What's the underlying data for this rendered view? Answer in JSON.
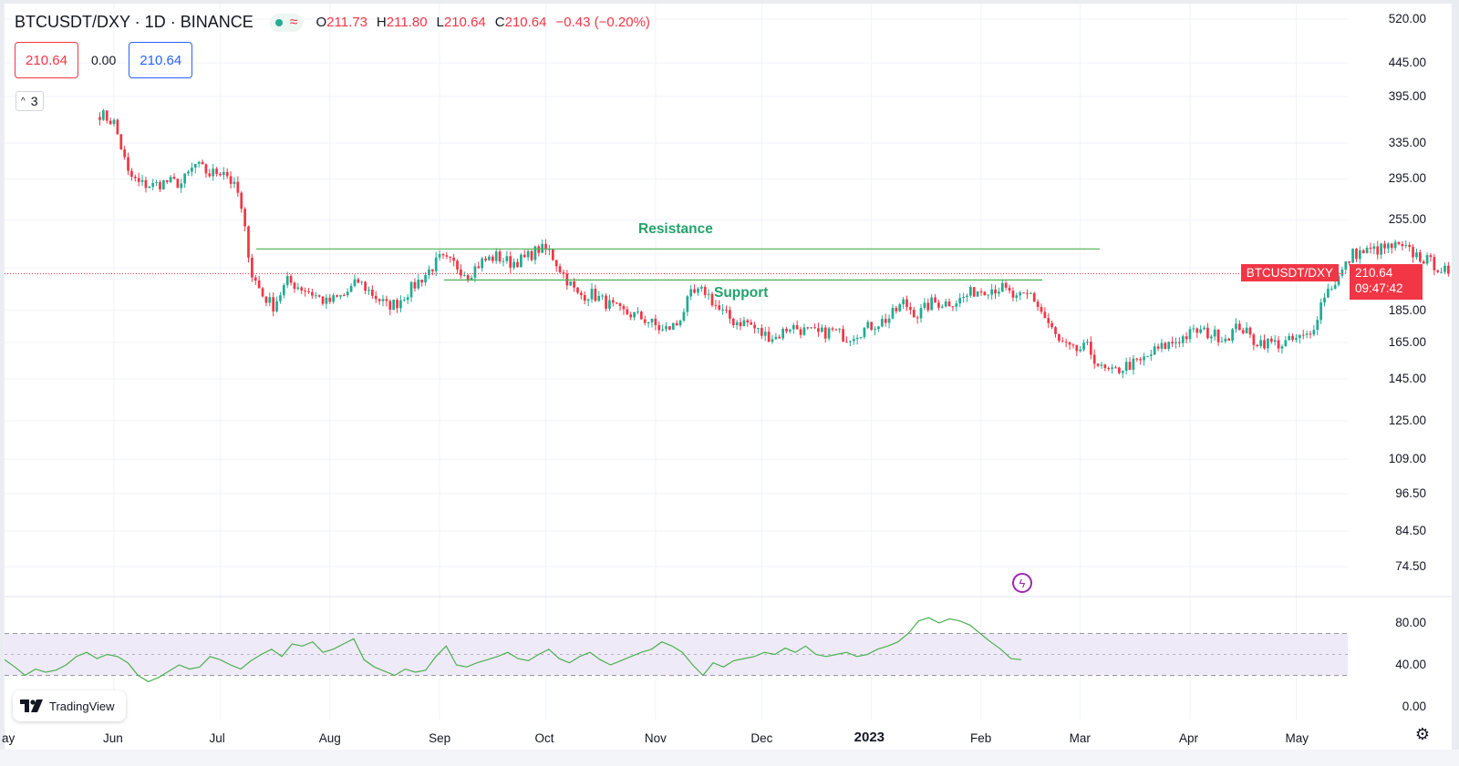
{
  "header": {
    "symbol": "BTCUSDT/DXY · 1D · BINANCE",
    "ohlc": {
      "o_label": "O",
      "o": "211.73",
      "h_label": "H",
      "h": "211.80",
      "l_label": "L",
      "l": "210.64",
      "c_label": "C",
      "c": "210.64",
      "change": "−0.43 (−0.20%)"
    }
  },
  "quote_boxes": {
    "bid": "210.64",
    "spread": "0.00",
    "ask": "210.64"
  },
  "indicators_count": "3",
  "price_tag": {
    "symbol": "BTCUSDT/DXY",
    "price": "210.64",
    "countdown": "09:47:42"
  },
  "branding": "TradingView",
  "colors": {
    "up": "#22ab94",
    "down": "#f23645",
    "annotation": "#22a36b",
    "rsi_line": "#4caf50",
    "rsi_band": "#efeaf8"
  },
  "chart_data": {
    "type": "candlestick",
    "title": "BTCUSDT/DXY · 1D · BINANCE",
    "scale": "log",
    "y_ticks": [
      "520.00",
      "445.00",
      "395.00",
      "335.00",
      "295.00",
      "255.00",
      "185.00",
      "165.00",
      "145.00",
      "125.00",
      "109.00",
      "96.50",
      "84.50",
      "74.50"
    ],
    "x_ticks": [
      "ay",
      "Jun",
      "Jul",
      "Aug",
      "Sep",
      "Oct",
      "Nov",
      "Dec",
      "2023",
      "Feb",
      "Mar",
      "Apr",
      "May"
    ],
    "annotations": [
      {
        "label": "Resistance",
        "value": 230
      },
      {
        "label": "Support",
        "value": 206
      }
    ],
    "last_price": 210.64,
    "price_path": [
      [
        "2022-05-28",
        372
      ],
      [
        "2022-06-01",
        360
      ],
      [
        "2022-06-05",
        300
      ],
      [
        "2022-06-08",
        290
      ],
      [
        "2022-06-12",
        288
      ],
      [
        "2022-06-16",
        292
      ],
      [
        "2022-06-20",
        290
      ],
      [
        "2022-06-24",
        310
      ],
      [
        "2022-06-28",
        300
      ],
      [
        "2022-07-02",
        305
      ],
      [
        "2022-07-06",
        280
      ],
      [
        "2022-07-10",
        210
      ],
      [
        "2022-07-13",
        195
      ],
      [
        "2022-07-16",
        188
      ],
      [
        "2022-07-20",
        205
      ],
      [
        "2022-07-26",
        198
      ],
      [
        "2022-07-31",
        190
      ],
      [
        "2022-08-05",
        195
      ],
      [
        "2022-08-09",
        205
      ],
      [
        "2022-08-13",
        196
      ],
      [
        "2022-08-17",
        188
      ],
      [
        "2022-08-20",
        190
      ],
      [
        "2022-08-24",
        200
      ],
      [
        "2022-08-28",
        210
      ],
      [
        "2022-09-01",
        222
      ],
      [
        "2022-09-05",
        218
      ],
      [
        "2022-09-09",
        210
      ],
      [
        "2022-09-13",
        220
      ],
      [
        "2022-09-17",
        224
      ],
      [
        "2022-09-21",
        219
      ],
      [
        "2022-09-25",
        222
      ],
      [
        "2022-09-29",
        230
      ],
      [
        "2022-10-02",
        228
      ],
      [
        "2022-10-06",
        210
      ],
      [
        "2022-10-10",
        195
      ],
      [
        "2022-10-14",
        196
      ],
      [
        "2022-10-18",
        190
      ],
      [
        "2022-10-22",
        184
      ],
      [
        "2022-10-26",
        182
      ],
      [
        "2022-10-30",
        178
      ],
      [
        "2022-11-03",
        172
      ],
      [
        "2022-11-07",
        176
      ],
      [
        "2022-11-11",
        195
      ],
      [
        "2022-11-15",
        198
      ],
      [
        "2022-11-19",
        185
      ],
      [
        "2022-11-23",
        178
      ],
      [
        "2022-11-27",
        177
      ],
      [
        "2022-12-01",
        170
      ],
      [
        "2022-12-05",
        168
      ],
      [
        "2022-12-09",
        175
      ],
      [
        "2022-12-13",
        172
      ],
      [
        "2022-12-17",
        170
      ],
      [
        "2022-12-21",
        172
      ],
      [
        "2022-12-25",
        168
      ],
      [
        "2022-12-29",
        172
      ],
      [
        "2023-01-02",
        176
      ],
      [
        "2023-01-06",
        180
      ],
      [
        "2023-01-10",
        190
      ],
      [
        "2023-01-14",
        182
      ],
      [
        "2023-01-18",
        190
      ],
      [
        "2023-01-22",
        190
      ],
      [
        "2023-01-26",
        192
      ],
      [
        "2023-01-30",
        198
      ],
      [
        "2023-02-03",
        200
      ],
      [
        "2023-02-07",
        200
      ],
      [
        "2023-02-11",
        192
      ],
      [
        "2023-02-15",
        196
      ],
      [
        "2023-02-19",
        180
      ],
      [
        "2023-02-23",
        165
      ],
      [
        "2023-02-27",
        160
      ],
      [
        "2023-03-03",
        162
      ],
      [
        "2023-03-07",
        150
      ],
      [
        "2023-03-10",
        148
      ],
      [
        "2023-03-14",
        152
      ],
      [
        "2023-03-18",
        154
      ],
      [
        "2023-03-22",
        160
      ],
      [
        "2023-03-26",
        164
      ],
      [
        "2023-03-30",
        168
      ],
      [
        "2023-04-03",
        172
      ],
      [
        "2023-04-07",
        170
      ],
      [
        "2023-04-11",
        168
      ],
      [
        "2023-04-15",
        175
      ],
      [
        "2023-04-19",
        166
      ],
      [
        "2023-04-23",
        165
      ],
      [
        "2023-04-27",
        164
      ],
      [
        "2023-05-01",
        167
      ],
      [
        "2023-05-05",
        169
      ],
      [
        "2023-05-09",
        196
      ],
      [
        "2023-05-13",
        208
      ],
      [
        "2023-05-17",
        226
      ],
      [
        "2023-05-21",
        228
      ],
      [
        "2023-05-25",
        230
      ],
      [
        "2023-05-29",
        232
      ],
      [
        "2023-06-02",
        228
      ],
      [
        "2023-06-06",
        222
      ],
      [
        "2023-06-10",
        216
      ],
      [
        "2023-06-13",
        210.64
      ]
    ],
    "rsi": {
      "ticks": [
        "80.00",
        "40.00",
        "0.00"
      ],
      "overbought": 70,
      "oversold": 30,
      "mid": 50,
      "values": [
        45,
        38,
        30,
        36,
        33,
        35,
        40,
        48,
        52,
        46,
        50,
        48,
        42,
        30,
        24,
        28,
        34,
        40,
        36,
        38,
        48,
        45,
        40,
        36,
        44,
        50,
        55,
        48,
        60,
        58,
        62,
        52,
        55,
        60,
        65,
        45,
        38,
        34,
        30,
        36,
        33,
        35,
        48,
        58,
        40,
        38,
        42,
        45,
        48,
        52,
        46,
        44,
        50,
        55,
        46,
        42,
        48,
        52,
        45,
        40,
        44,
        48,
        52,
        55,
        62,
        58,
        52,
        40,
        30,
        42,
        38,
        44,
        46,
        48,
        52,
        50,
        56,
        52,
        58,
        50,
        48,
        50,
        52,
        48,
        50,
        55,
        58,
        62,
        70,
        82,
        85,
        80,
        84,
        82,
        78,
        70,
        62,
        55,
        46,
        45
      ]
    }
  }
}
